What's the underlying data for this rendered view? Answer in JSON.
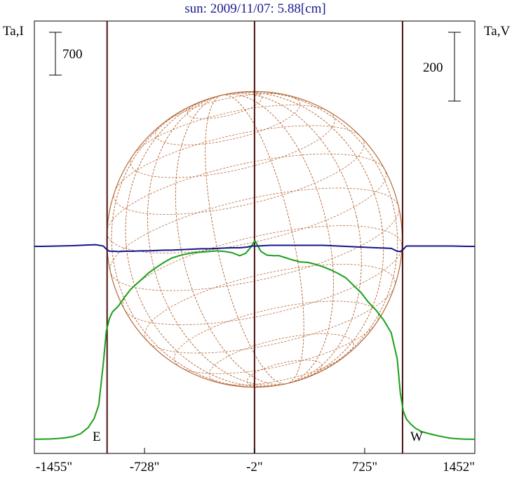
{
  "chart_data": {
    "type": "line",
    "title": "sun: 2009/11/07: 5.88[cm]",
    "left_axis_label": "Ta,I",
    "right_axis_label": "Ta,V",
    "left_scale_bar_label": "700",
    "right_scale_bar_label": "200",
    "x_unit": "arcsec",
    "x_tick_labels": [
      "-1455\"",
      "-728\"",
      "-2\"",
      "725\"",
      "1452\""
    ],
    "x_range": [
      -1455,
      1452
    ],
    "limb_labels": [
      "E",
      "W"
    ],
    "limb_positions": [
      -975,
      975
    ],
    "center_position": -2,
    "colors": {
      "stokes_I": "#1aa01a",
      "stokes_V": "#14148c",
      "solar_disk": "#b86a3a",
      "limb_lines": "#4a1010",
      "title": "#1a1a8c"
    },
    "series": [
      {
        "name": "Ta,I",
        "x": [
          -1455,
          -1400,
          -1350,
          -1300,
          -1250,
          -1200,
          -1150,
          -1100,
          -1060,
          -1030,
          -1000,
          -980,
          -960,
          -940,
          -900,
          -860,
          -820,
          -780,
          -740,
          -700,
          -650,
          -600,
          -550,
          -500,
          -450,
          -400,
          -350,
          -300,
          -250,
          -200,
          -150,
          -100,
          -60,
          -20,
          0,
          20,
          40,
          80,
          120,
          160,
          200,
          250,
          300,
          350,
          400,
          450,
          500,
          550,
          600,
          650,
          700,
          750,
          800,
          850,
          900,
          940,
          960,
          980,
          1000,
          1030,
          1060,
          1100,
          1150,
          1200,
          1250,
          1300,
          1350,
          1400,
          1452
        ],
        "values": [
          60,
          62,
          64,
          72,
          84,
          105,
          150,
          250,
          400,
          620,
          1300,
          1830,
          2030,
          2140,
          2240,
          2380,
          2510,
          2600,
          2690,
          2780,
          2870,
          2950,
          3020,
          3060,
          3090,
          3110,
          3120,
          3130,
          3140,
          3130,
          3110,
          3060,
          3100,
          3220,
          3310,
          3220,
          3130,
          3070,
          3060,
          3060,
          3030,
          2990,
          2960,
          2950,
          2920,
          2880,
          2830,
          2770,
          2700,
          2580,
          2460,
          2300,
          2170,
          2010,
          1800,
          1370,
          820,
          520,
          390,
          305,
          240,
          185,
          150,
          120,
          95,
          75,
          65,
          60,
          60
        ]
      },
      {
        "name": "Ta,V",
        "x": [
          -1455,
          -1400,
          -1300,
          -1200,
          -1100,
          -1050,
          -1000,
          -980,
          -960,
          -940,
          -900,
          -850,
          -800,
          -750,
          -700,
          -650,
          -600,
          -550,
          -500,
          -450,
          -400,
          -350,
          -300,
          -250,
          -200,
          -150,
          -100,
          -50,
          -20,
          0,
          20,
          60,
          100,
          150,
          200,
          250,
          300,
          350,
          400,
          450,
          500,
          550,
          600,
          650,
          700,
          750,
          800,
          850,
          900,
          940,
          960,
          980,
          1000,
          1050,
          1100,
          1200,
          1300,
          1400,
          1452
        ],
        "values": [
          0,
          0,
          1,
          2,
          4,
          5,
          1,
          -8,
          -14,
          -14,
          -15,
          -14,
          -14,
          -13,
          -13,
          -12,
          -11,
          -11,
          -10,
          -9,
          -8,
          -7,
          -7,
          -6,
          -5,
          -4,
          -4,
          -2,
          1,
          1,
          1,
          2,
          3,
          3,
          3,
          3,
          3,
          3,
          3,
          3,
          2,
          1,
          0,
          -1,
          -2,
          -3,
          -4,
          -5,
          -6,
          -14,
          -15,
          -9,
          1,
          1,
          1,
          1,
          1,
          0,
          0
        ]
      }
    ]
  }
}
